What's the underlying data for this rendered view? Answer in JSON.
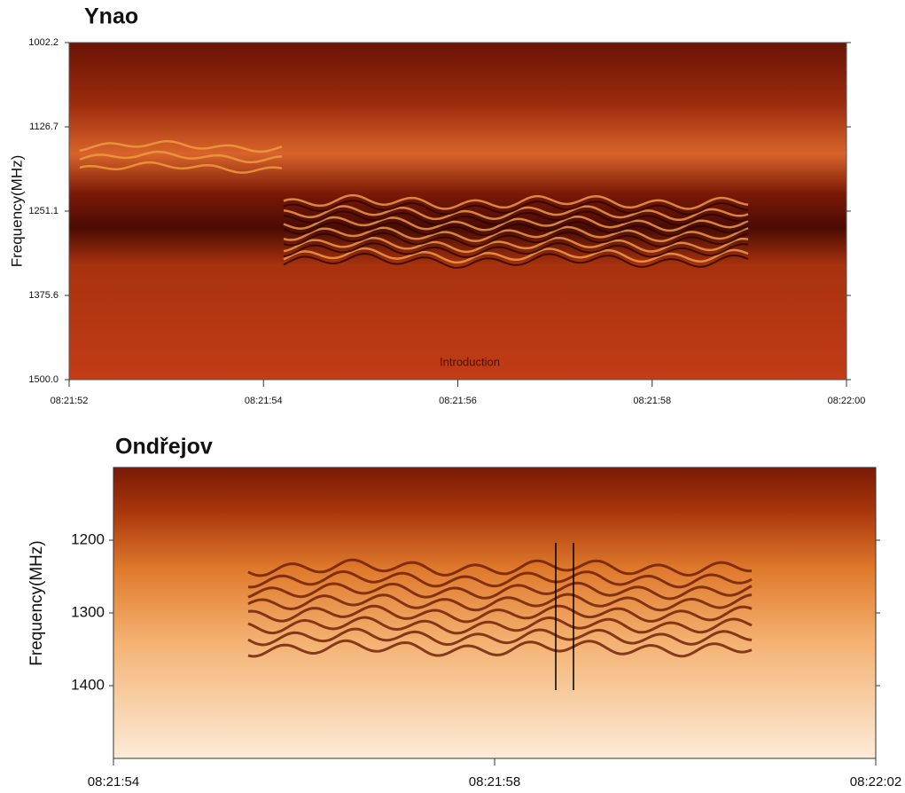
{
  "chart_data": [
    {
      "type": "spectrogram",
      "title": "Ynao",
      "ylabel": "Frequency(MHz)",
      "annotation": "Introduction",
      "ylim": [
        1002.2,
        1500
      ],
      "yticks": [
        1002.2,
        1126.7,
        1251.1,
        1375.6,
        {
          "value": 1500,
          "label": "1500.0"
        }
      ],
      "xlim": [
        "08:21:52",
        "08:22:00"
      ],
      "xticks": [
        "08:21:52",
        "08:21:54",
        "08:21:56",
        "08:21:58",
        "08:22:00"
      ]
    },
    {
      "type": "spectrogram",
      "title": "Ondřejov",
      "ylabel": "Frequency(MHz)",
      "ylim": [
        1100,
        1500
      ],
      "yticks": [
        1200,
        1300,
        1400
      ],
      "xlim": [
        "08:21:54",
        "08:22:02"
      ],
      "xticks": [
        "08:21:54",
        "08:21:58",
        "08:22:02"
      ]
    }
  ]
}
